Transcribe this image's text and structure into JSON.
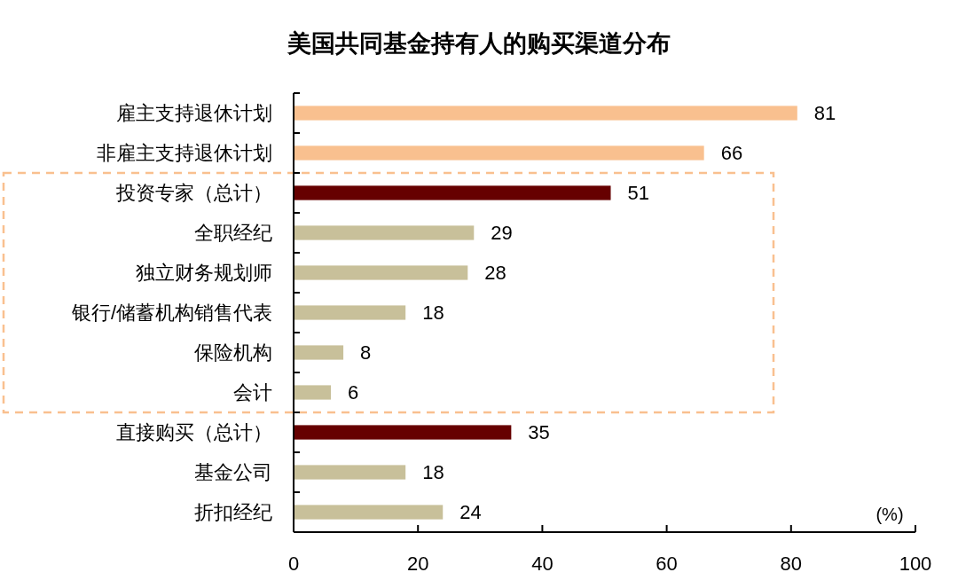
{
  "chart_data": {
    "type": "bar",
    "orientation": "horizontal",
    "title": "美国共同基金持有人的购买渠道分布",
    "xlabel": "(%)",
    "categories": [
      "雇主支持退休计划",
      "非雇主支持退休计划",
      "投资专家（总计）",
      "全职经纪",
      "独立财务规划师",
      "银行/储蓄机构销售代表",
      "保险机构",
      "会计",
      "直接购买（总计）",
      "基金公司",
      "折扣经纪"
    ],
    "values": [
      81,
      66,
      51,
      29,
      28,
      18,
      8,
      6,
      35,
      18,
      24
    ],
    "colors": [
      "#f9c08f",
      "#f9c08f",
      "#660000",
      "#c8c09a",
      "#c8c09a",
      "#c8c09a",
      "#c8c09a",
      "#c8c09a",
      "#660000",
      "#c8c09a",
      "#c8c09a"
    ],
    "xlim": [
      0,
      100
    ],
    "xticks": [
      0,
      20,
      40,
      60,
      80,
      100
    ],
    "data_labels": true
  }
}
